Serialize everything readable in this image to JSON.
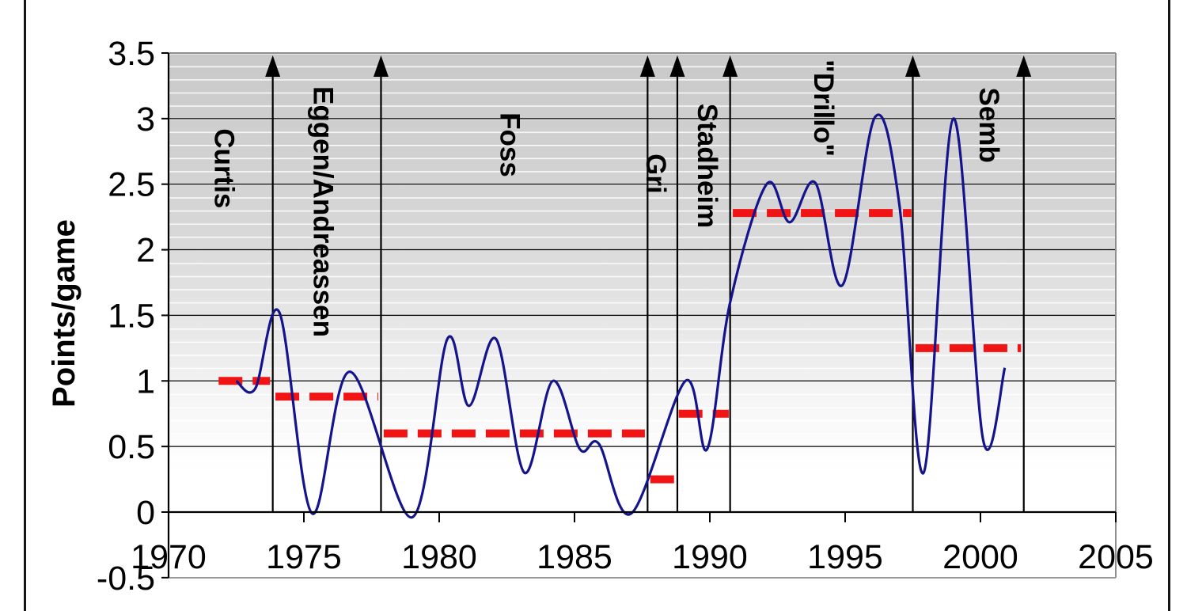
{
  "page": {
    "background": "#ffffff",
    "border_color": "#151515"
  },
  "chart": {
    "y_axis": {
      "title": "Points/game",
      "ticks": [
        [
          "3.5",
          3.5
        ],
        [
          "3",
          3.0
        ],
        [
          "2.5",
          2.5
        ],
        [
          "2",
          2.0
        ],
        [
          "1.5",
          1.5
        ],
        [
          "1",
          1.0
        ],
        [
          "0.5",
          0.5
        ],
        [
          "0",
          0.0
        ],
        [
          "-0.5",
          -0.5
        ]
      ]
    },
    "x_axis": {
      "ticks": [
        [
          "1970",
          1970
        ],
        [
          "1975",
          1975
        ],
        [
          "1980",
          1980
        ],
        [
          "1985",
          1985
        ],
        [
          "1990",
          1990
        ],
        [
          "1995",
          1995
        ],
        [
          "2000",
          2000
        ],
        [
          "2005",
          2005
        ]
      ]
    },
    "colors": {
      "line": "#14148C",
      "average_line": "#F01414",
      "gridline": "#000000",
      "plot_border": "#8F8F8F",
      "bg_top": "#C9C9C9",
      "bg_bottom": "#FFFFFF",
      "stripe": "#FFFFFF",
      "era_line": "#000000"
    }
  },
  "chart_data": {
    "type": "line",
    "title": "",
    "xlabel": "",
    "ylabel": "Points/game",
    "xlim": [
      1970,
      2005
    ],
    "ylim": [
      -0.5,
      3.5
    ],
    "grid": true,
    "series": [
      {
        "name": "points-per-game",
        "points": [
          [
            1972.5,
            1.0
          ],
          [
            1973.2,
            0.94
          ],
          [
            1974.1,
            1.52
          ],
          [
            1975.3,
            -0.01
          ],
          [
            1976.7,
            1.07
          ],
          [
            1979.0,
            -0.04
          ],
          [
            1980.3,
            1.32
          ],
          [
            1981.1,
            0.81
          ],
          [
            1982.1,
            1.32
          ],
          [
            1983.15,
            0.3
          ],
          [
            1984.2,
            1.0
          ],
          [
            1985.2,
            0.48
          ],
          [
            1985.9,
            0.52
          ],
          [
            1987.1,
            -0.01
          ],
          [
            1989.1,
            1.0
          ],
          [
            1989.9,
            0.48
          ],
          [
            1990.75,
            1.6
          ],
          [
            1992.1,
            2.5
          ],
          [
            1992.95,
            2.21
          ],
          [
            1993.9,
            2.51
          ],
          [
            1994.9,
            1.73
          ],
          [
            1996.1,
            3.01
          ],
          [
            1997.0,
            2.35
          ],
          [
            1997.9,
            0.3
          ],
          [
            1999.0,
            3.0
          ],
          [
            2000.1,
            0.55
          ],
          [
            2000.9,
            1.1
          ]
        ]
      }
    ],
    "eras": [
      {
        "label": "Curtis",
        "start": 1971.8,
        "end": 1973.85,
        "avg": 1.0,
        "dash_start": 1971.85,
        "dash_end": 1973.75,
        "label_x": 1972.05,
        "label_y": 2.62
      },
      {
        "label": "Eggen/Andreassen",
        "start": 1973.85,
        "end": 1977.85,
        "avg": 0.88,
        "dash_start": 1973.95,
        "dash_end": 1977.75,
        "label_x": 1975.7,
        "label_y": 2.29
      },
      {
        "label": "Foss",
        "start": 1977.85,
        "end": 1987.7,
        "avg": 0.6,
        "dash_start": 1977.95,
        "dash_end": 1987.6,
        "label_x": 1982.6,
        "label_y": 2.8
      },
      {
        "label": "Gri",
        "start": 1987.7,
        "end": 1988.8,
        "avg": 0.25,
        "dash_start": 1987.8,
        "dash_end": 1988.75,
        "label_x": 1988.0,
        "label_y": 2.58
      },
      {
        "label": "Stadheim",
        "start": 1988.8,
        "end": 1990.75,
        "avg": 0.75,
        "dash_start": 1988.85,
        "dash_end": 1990.7,
        "label_x": 1989.9,
        "label_y": 2.64
      },
      {
        "label": "\"Drillo\"",
        "start": 1990.75,
        "end": 1997.5,
        "avg": 2.28,
        "dash_start": 1990.85,
        "dash_end": 1997.45,
        "label_x": 1994.2,
        "label_y": 3.08
      },
      {
        "label": "Semb",
        "start": 1997.5,
        "end": 2001.6,
        "avg": 1.25,
        "dash_start": 1997.6,
        "dash_end": 2001.5,
        "label_x": 2000.3,
        "label_y": 2.95
      }
    ]
  }
}
